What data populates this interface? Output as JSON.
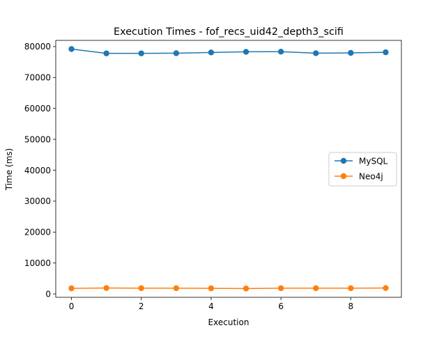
{
  "chart_data": {
    "type": "line",
    "title": "Execution Times - fof_recs_uid42_depth3_scifi",
    "xlabel": "Execution",
    "ylabel": "Time (ms)",
    "x": [
      0,
      1,
      2,
      3,
      4,
      5,
      6,
      7,
      8,
      9
    ],
    "xlim": [
      -0.45,
      9.45
    ],
    "ylim": [
      -1100,
      82000
    ],
    "xticks": [
      0,
      2,
      4,
      6,
      8
    ],
    "xtick_labels": [
      "0",
      "2",
      "4",
      "6",
      "8"
    ],
    "yticks": [
      0,
      10000,
      20000,
      30000,
      40000,
      50000,
      60000,
      70000,
      80000
    ],
    "ytick_labels": [
      "0",
      "10000",
      "20000",
      "30000",
      "40000",
      "50000",
      "60000",
      "70000",
      "80000"
    ],
    "grid": false,
    "legend_position": "center-right",
    "series": [
      {
        "name": "MySQL",
        "color": "#1f77b4",
        "marker": "circle",
        "values": [
          79200,
          77800,
          77800,
          77850,
          78100,
          78300,
          78350,
          77850,
          77950,
          78150
        ]
      },
      {
        "name": "Neo4j",
        "color": "#ff7f0e",
        "marker": "circle",
        "values": [
          1800,
          1900,
          1850,
          1850,
          1800,
          1750,
          1850,
          1850,
          1850,
          1900
        ]
      }
    ]
  }
}
